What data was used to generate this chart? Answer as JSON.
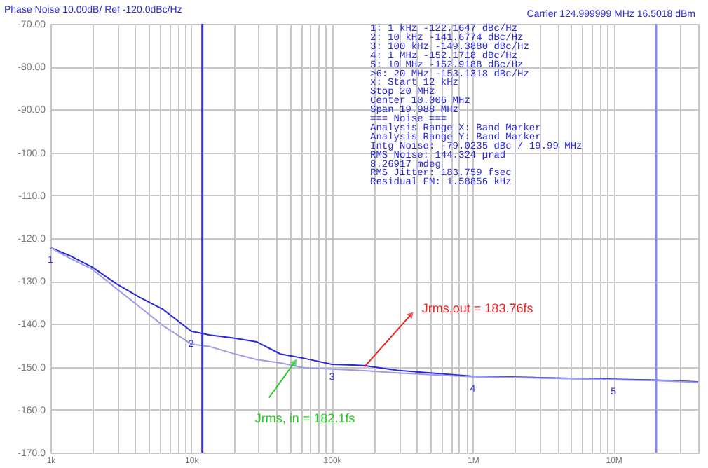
{
  "chart_data": {
    "type": "line",
    "title": "Phase Noise 10.00dB/ Ref -120.0dBc/Hz",
    "annotations": [
      "Carrier 124.999999 MHz 16.5018 dBm",
      "1: 1 kHz -122.1647 dBc/Hz",
      "2: 10 kHz -141.6774 dBc/Hz",
      "3: 100 kHz -149.3880 dBc/Hz",
      "4: 1 MHz -152.1718 dBc/Hz",
      "5: 10 MHz -152.9188 dBc/Hz",
      ">6: 20 MHz -153.1318 dBc/Hz",
      "x: Start 12 kHz",
      "Stop 20 MHz",
      "Center 10.006 MHz",
      "Span 19.988 MHz",
      "=== Noise ===",
      "Analysis Range X: Band Marker",
      "Analysis Range Y: Band Marker",
      "Intg Noise: -79.0235 dBc / 19.99 MHz",
      "RMS Noise: 144.324 µrad",
      "8.26917 mdeg",
      "RMS Jitter: 183.759 fsec",
      "Residual FM: 1.58856 kHz",
      {
        "text": "Jrms, in = 182.1fs",
        "x": 54000,
        "y": -149
      },
      {
        "text": "Jrms,out = 183.76fs",
        "x": 170000,
        "y": -150
      },
      {
        "text": "1",
        "x": 1000,
        "y": -122.1647
      },
      {
        "text": "2",
        "x": 10000,
        "y": -141.6774
      },
      {
        "text": "3",
        "x": 100000,
        "y": -149.388
      },
      {
        "text": "4",
        "x": 1000000,
        "y": -152.1718
      },
      {
        "text": "5",
        "x": 10000000,
        "y": -152.9188
      }
    ],
    "x": [
      1000,
      1359,
      1995,
      2929,
      4300,
      6310,
      10000,
      13590,
      19950,
      29290,
      43000,
      63100,
      100000,
      170000,
      290000,
      1000000,
      2880000,
      10000000,
      20000000,
      40000000
    ],
    "series": [
      {
        "color": "#2a2ad8",
        "values": [
          -122.2,
          -124,
          -126.8,
          -130.6,
          -133.8,
          -136.6,
          -141.7,
          -142.6,
          -143.3,
          -144.2,
          -147,
          -148,
          -149.4,
          -149.7,
          -150.8,
          -152.2,
          -152.5,
          -152.9,
          -153.1,
          -153.5
        ]
      },
      {
        "color": "#9c9ce8",
        "values": [
          -122.2,
          -124.6,
          -127.3,
          -131.7,
          -136,
          -140.4,
          -144.7,
          -145.3,
          -146.9,
          -148.3,
          -149.1,
          -150.2,
          -150.5,
          -150.9,
          -151.4,
          -152.3,
          -152.6,
          -153,
          -153.2,
          -153.6
        ]
      }
    ],
    "log": "x",
    "xlim": [
      1000,
      40000000
    ],
    "xticks": [
      {
        "value": 1000,
        "label": "1k"
      },
      {
        "value": 2000,
        "label": null
      },
      {
        "value": 3000,
        "label": null
      },
      {
        "value": 4000,
        "label": null
      },
      {
        "value": 5000,
        "label": null
      },
      {
        "value": 6000,
        "label": null
      },
      {
        "value": 7000,
        "label": null
      },
      {
        "value": 8000,
        "label": null
      },
      {
        "value": 9000,
        "label": null
      },
      {
        "value": 10000,
        "label": "10k"
      },
      {
        "value": 20000,
        "label": null
      },
      {
        "value": 30000,
        "label": null
      },
      {
        "value": 40000,
        "label": null
      },
      {
        "value": 50000,
        "label": null
      },
      {
        "value": 60000,
        "label": null
      },
      {
        "value": 70000,
        "label": null
      },
      {
        "value": 80000,
        "label": null
      },
      {
        "value": 90000,
        "label": null
      },
      {
        "value": 100000,
        "label": "100k"
      },
      {
        "value": 200000,
        "label": null
      },
      {
        "value": 300000,
        "label": null
      },
      {
        "value": 400000,
        "label": null
      },
      {
        "value": 500000,
        "label": null
      },
      {
        "value": 600000,
        "label": null
      },
      {
        "value": 700000,
        "label": null
      },
      {
        "value": 800000,
        "label": null
      },
      {
        "value": 900000,
        "label": null
      },
      {
        "value": 1000000,
        "label": "1M"
      },
      {
        "value": 2000000,
        "label": null
      },
      {
        "value": 3000000,
        "label": null
      },
      {
        "value": 4000000,
        "label": null
      },
      {
        "value": 5000000,
        "label": null
      },
      {
        "value": 6000000,
        "label": null
      },
      {
        "value": 7000000,
        "label": null
      },
      {
        "value": 8000000,
        "label": null
      },
      {
        "value": 9000000,
        "label": null
      },
      {
        "value": 10000000,
        "label": "10M"
      },
      {
        "value": 20000000,
        "label": null
      },
      {
        "value": 30000000,
        "label": null
      },
      {
        "value": 40000000,
        "label": null
      }
    ],
    "ylim": [
      -170,
      -70
    ],
    "yticks": [
      {
        "value": -70,
        "label": "-70.00"
      },
      {
        "value": -80,
        "label": "-80.00"
      },
      {
        "value": -90,
        "label": "-90.00"
      },
      {
        "value": -100,
        "label": "-100.0"
      },
      {
        "value": -110,
        "label": "-110.0"
      },
      {
        "value": -120,
        "label": "-120.0"
      },
      {
        "value": -130,
        "label": "-130.0"
      },
      {
        "value": -140,
        "label": "-140.0"
      },
      {
        "value": -150,
        "label": "-150.0"
      },
      {
        "value": -160,
        "label": "-160.0"
      },
      {
        "value": -170,
        "label": "-170.0"
      }
    ],
    "ref_lines": [
      {
        "axis": "x",
        "value": 12000,
        "color": "#3333dd"
      },
      {
        "axis": "x",
        "value": 20000000,
        "color": "#8888ee"
      }
    ],
    "grid": true,
    "line_style": "solid",
    "marker": "none"
  }
}
